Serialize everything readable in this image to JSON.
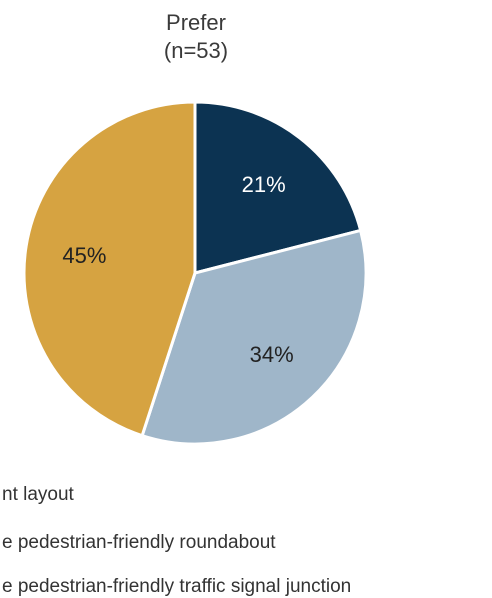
{
  "chart_data": {
    "type": "pie",
    "title_lines": [
      "Prefer",
      "(n=53)"
    ],
    "slices": [
      {
        "label": "21%",
        "value": 21,
        "color": "#0c3352",
        "label_color": "#ffffff",
        "legend": "nt layout"
      },
      {
        "label": "34%",
        "value": 34,
        "color": "#9fb6c9",
        "label_color": "#222222",
        "legend": "e pedestrian-friendly roundabout"
      },
      {
        "label": "45%",
        "value": 45,
        "color": "#d6a341",
        "label_color": "#222222",
        "legend": "e pedestrian-friendly traffic signal junction"
      }
    ]
  }
}
